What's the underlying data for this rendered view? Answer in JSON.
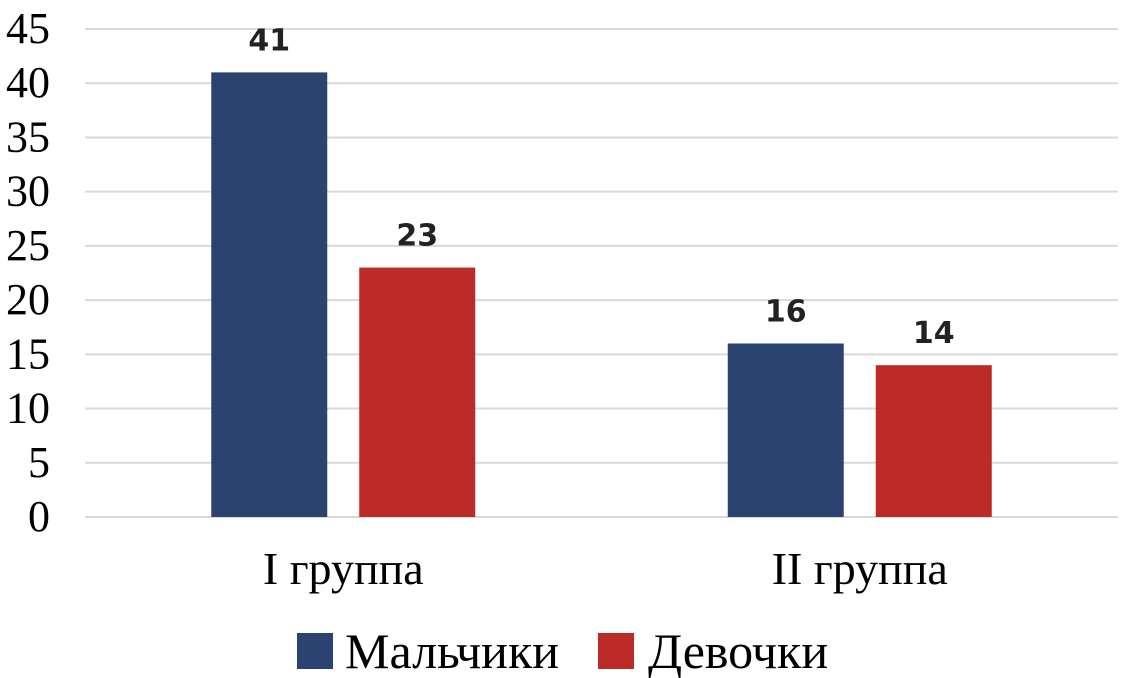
{
  "chart_data": {
    "type": "bar",
    "categories": [
      "I группа",
      "II группа"
    ],
    "series": [
      {
        "name": "Мальчики",
        "values": [
          41,
          16
        ],
        "color": "#2c4270"
      },
      {
        "name": "Девочки",
        "values": [
          23,
          14
        ],
        "color": "#bc2b27"
      }
    ],
    "yticks": [
      "0",
      "5",
      "10",
      "15",
      "20",
      "25",
      "30",
      "35",
      "40",
      "45"
    ],
    "ylim": [
      0,
      45
    ],
    "grid": true,
    "legend_position": "bottom"
  }
}
